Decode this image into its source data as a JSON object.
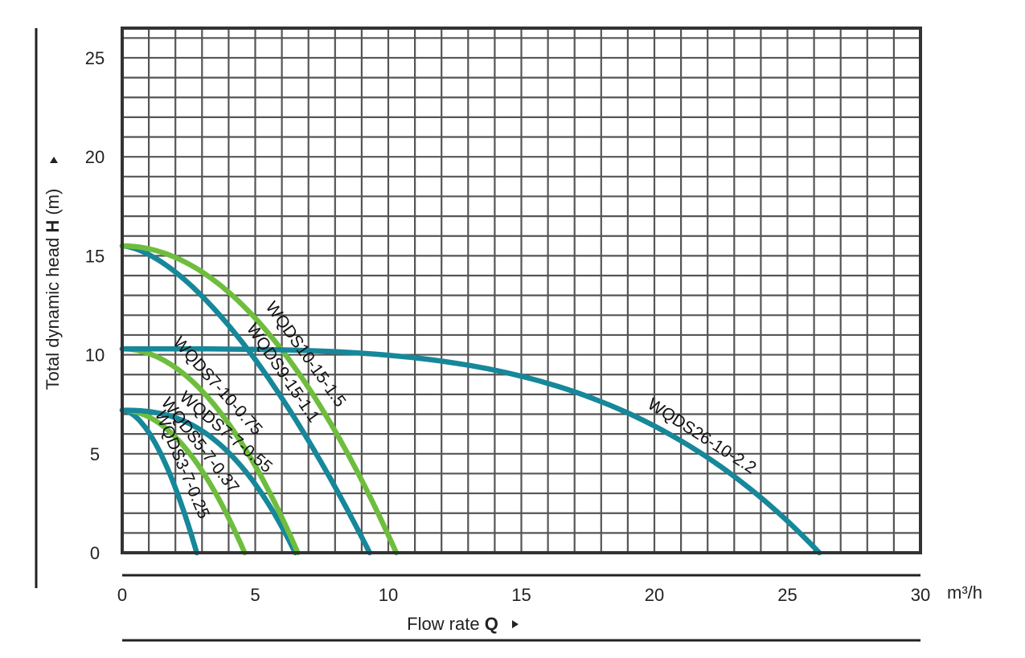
{
  "chart_data": {
    "type": "line",
    "xlabel": "Flow rate",
    "xlabel_symbol": "Q",
    "xunit": "m³/h",
    "ylabel": "Total dynamic head",
    "ylabel_symbol": "H",
    "yunit": "(m)",
    "xlim": [
      0,
      30
    ],
    "ylim": [
      0,
      26.5
    ],
    "xticks": [
      0,
      5,
      10,
      15,
      20,
      25,
      30
    ],
    "yticks": [
      0,
      5,
      10,
      15,
      20,
      25
    ],
    "grid": true,
    "colors": {
      "teal": "#17879a",
      "green": "#6ebd3d",
      "grid": "#555555",
      "frame": "#333333"
    },
    "series": [
      {
        "name": "WQDS3-7-0.25",
        "color": "teal",
        "exp": 1.8,
        "x": [
          0,
          0.5,
          1.0,
          1.5,
          2.0,
          2.5,
          2.8
        ],
        "y": [
          7.2,
          6.4,
          5.4,
          4.2,
          2.8,
          1.1,
          0
        ]
      },
      {
        "name": "WQDS5-7-0.37",
        "color": "green",
        "exp": 2.0,
        "x": [
          0,
          1,
          2,
          3,
          4,
          4.6
        ],
        "y": [
          7.2,
          6.9,
          6.0,
          4.5,
          2.2,
          0
        ]
      },
      {
        "name": "WQDS7-7-0.55",
        "color": "teal",
        "exp": 2.5,
        "x": [
          0,
          1,
          2,
          3,
          4,
          5,
          6,
          6.5
        ],
        "y": [
          7.2,
          7.1,
          6.8,
          6.3,
          5.4,
          4.0,
          1.8,
          0
        ]
      },
      {
        "name": "WQDS7-10-0.75",
        "color": "green",
        "exp": 2.0,
        "x": [
          0,
          1,
          2,
          3,
          4,
          5,
          6,
          6.6
        ],
        "y": [
          10.3,
          10.0,
          9.4,
          8.4,
          6.9,
          5.0,
          2.3,
          0
        ]
      },
      {
        "name": "WQDS9-15-1.1",
        "color": "teal",
        "exp": 1.6,
        "x": [
          0,
          2,
          4,
          6,
          7,
          8,
          9,
          9.3
        ],
        "y": [
          15.5,
          14.0,
          11.8,
          8.8,
          6.9,
          4.6,
          1.6,
          0
        ]
      },
      {
        "name": "WQDS10-15-1.5",
        "color": "green",
        "exp": 2.0,
        "x": [
          0,
          2,
          4,
          6,
          8,
          9,
          10,
          10.3
        ],
        "y": [
          15.5,
          14.9,
          13.2,
          10.6,
          6.8,
          4.6,
          1.5,
          0
        ]
      },
      {
        "name": "WQDS26-10-2.2",
        "color": "teal",
        "exp": 3.6,
        "x": [
          0,
          5,
          10,
          15,
          18,
          20,
          22,
          24,
          26.2
        ],
        "y": [
          10.3,
          9.9,
          9.1,
          7.7,
          6.5,
          5.3,
          3.8,
          2.2,
          0
        ]
      }
    ]
  }
}
